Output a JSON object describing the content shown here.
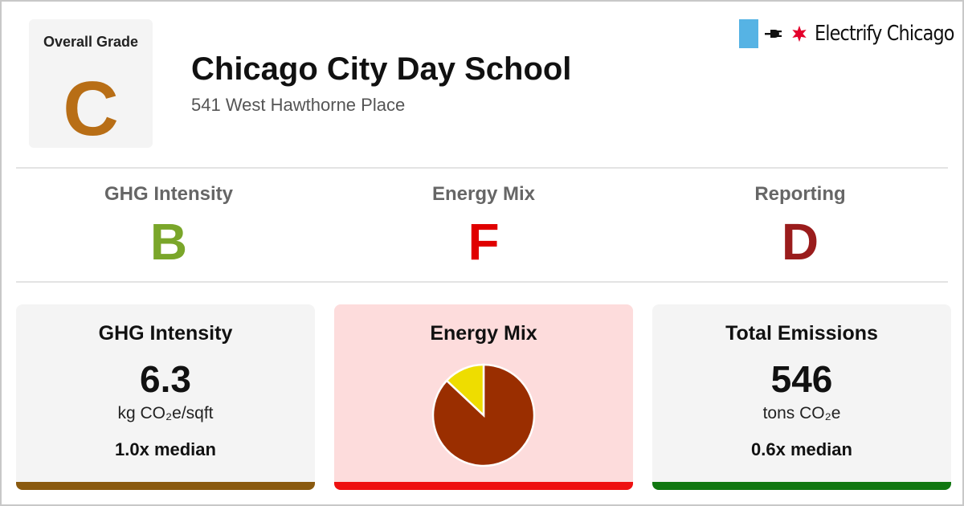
{
  "overall": {
    "label": "Overall Grade",
    "grade": "C",
    "color": "#b86e16"
  },
  "building": {
    "name": "Chicago City Day School",
    "address": "541 West Hawthorne Place"
  },
  "brand": {
    "name": "Electrify Chicago",
    "icons": [
      "flag-icon",
      "plug-icon",
      "star-icon"
    ],
    "flag_color": "#56b3e4",
    "star_color": "#e4002b"
  },
  "subgrades": [
    {
      "label": "GHG Intensity",
      "grade": "B",
      "color": "#7aa62a"
    },
    {
      "label": "Energy Mix",
      "grade": "F",
      "color": "#e00000"
    },
    {
      "label": "Reporting",
      "grade": "D",
      "color": "#9a1c1c"
    }
  ],
  "cards": {
    "ghg": {
      "heading": "GHG Intensity",
      "value": "6.3",
      "unit": "kg CO₂e/sqft",
      "median": "1.0x median",
      "bar_color": "#8a5a10",
      "bg": "#f4f4f4"
    },
    "mix": {
      "heading": "Energy Mix",
      "bar_color": "#ee1111",
      "bg": "#fddcdc"
    },
    "total": {
      "heading": "Total Emissions",
      "value": "546",
      "unit": "tons CO₂e",
      "median": "0.6x median",
      "bar_color": "#117711",
      "bg": "#f4f4f4"
    }
  },
  "chart_data": {
    "type": "pie",
    "slices": [
      {
        "value": 0.87,
        "color": "#9a2e00"
      },
      {
        "value": 0.13,
        "color": "#eedd00"
      }
    ]
  }
}
